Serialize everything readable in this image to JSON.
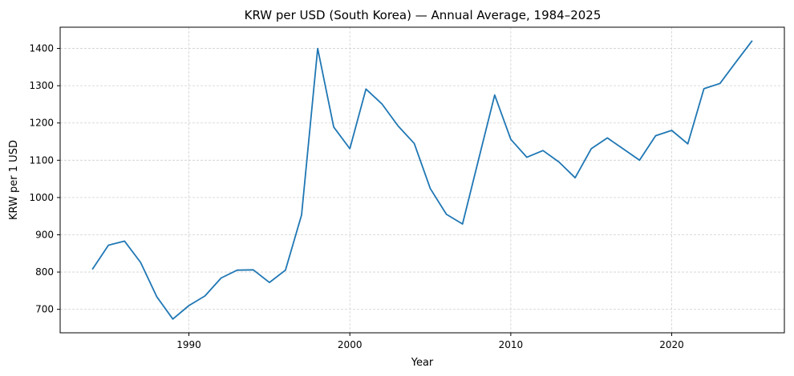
{
  "chart_data": {
    "type": "line",
    "title": "KRW per USD (South Korea) — Annual Average, 1984–2025",
    "xlabel": "Year",
    "ylabel": "KRW per 1 USD",
    "xlim": [
      1982,
      2027
    ],
    "ylim": [
      637,
      1457
    ],
    "xticks": [
      1990,
      2000,
      2010,
      2020
    ],
    "yticks": [
      700,
      800,
      900,
      1000,
      1100,
      1200,
      1300,
      1400
    ],
    "grid": true,
    "series": [
      {
        "name": "KRW per USD",
        "color": "#1f77b4",
        "x": [
          1984,
          1985,
          1986,
          1987,
          1988,
          1989,
          1990,
          1991,
          1992,
          1993,
          1994,
          1995,
          1996,
          1997,
          1998,
          1999,
          2000,
          2001,
          2002,
          2003,
          2004,
          2005,
          2006,
          2007,
          2008,
          2009,
          2010,
          2011,
          2012,
          2013,
          2014,
          2015,
          2016,
          2017,
          2018,
          2019,
          2020,
          2021,
          2022,
          2023,
          2024,
          2025
        ],
        "y": [
          807,
          872,
          883,
          826,
          734,
          674,
          710,
          736,
          784,
          805,
          806,
          772,
          805,
          953,
          1400,
          1189,
          1131,
          1291,
          1251,
          1192,
          1145,
          1024,
          955,
          929,
          1102,
          1275,
          1156,
          1108,
          1126,
          1095,
          1053,
          1131,
          1160,
          1130,
          1100,
          1166,
          1180,
          1144,
          1292,
          1306,
          1364,
          1421
        ]
      }
    ]
  }
}
